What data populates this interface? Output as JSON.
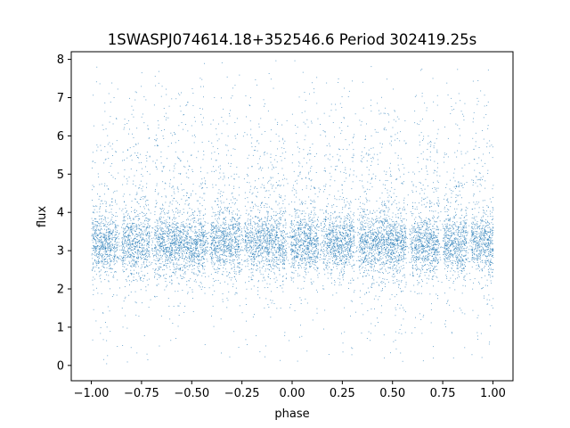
{
  "chart_data": {
    "type": "scatter",
    "title": "1SWASPJ074614.18+352546.6 Period 302419.25s",
    "xlabel": "phase",
    "ylabel": "flux",
    "xlim": [
      -1.1,
      1.1
    ],
    "ylim": [
      -0.4,
      8.2
    ],
    "x_ticks": [
      -1.0,
      -0.75,
      -0.5,
      -0.25,
      0.0,
      0.25,
      0.5,
      0.75,
      1.0
    ],
    "x_tick_labels": [
      "−1.00",
      "−0.75",
      "−0.50",
      "−0.25",
      "0.00",
      "0.25",
      "0.50",
      "0.75",
      "1.00"
    ],
    "y_ticks": [
      0,
      1,
      2,
      3,
      4,
      5,
      6,
      7,
      8
    ],
    "y_tick_labels": [
      "0",
      "1",
      "2",
      "3",
      "4",
      "5",
      "6",
      "7",
      "8"
    ],
    "grid": false,
    "legend": "none",
    "point_color": "#1f77b4",
    "point_count_approx": 40000,
    "phase_range": [
      -1.0,
      1.0
    ],
    "flux_core": {
      "center": 3.2,
      "typical_min": 2.2,
      "typical_max": 4.2
    },
    "flux_extremes": {
      "min": 0.0,
      "max": 8.0
    },
    "gap_phases": [
      -0.86,
      -0.7,
      -0.42,
      -0.25,
      -0.02,
      0.14,
      0.32,
      0.58,
      0.74,
      0.88
    ]
  }
}
